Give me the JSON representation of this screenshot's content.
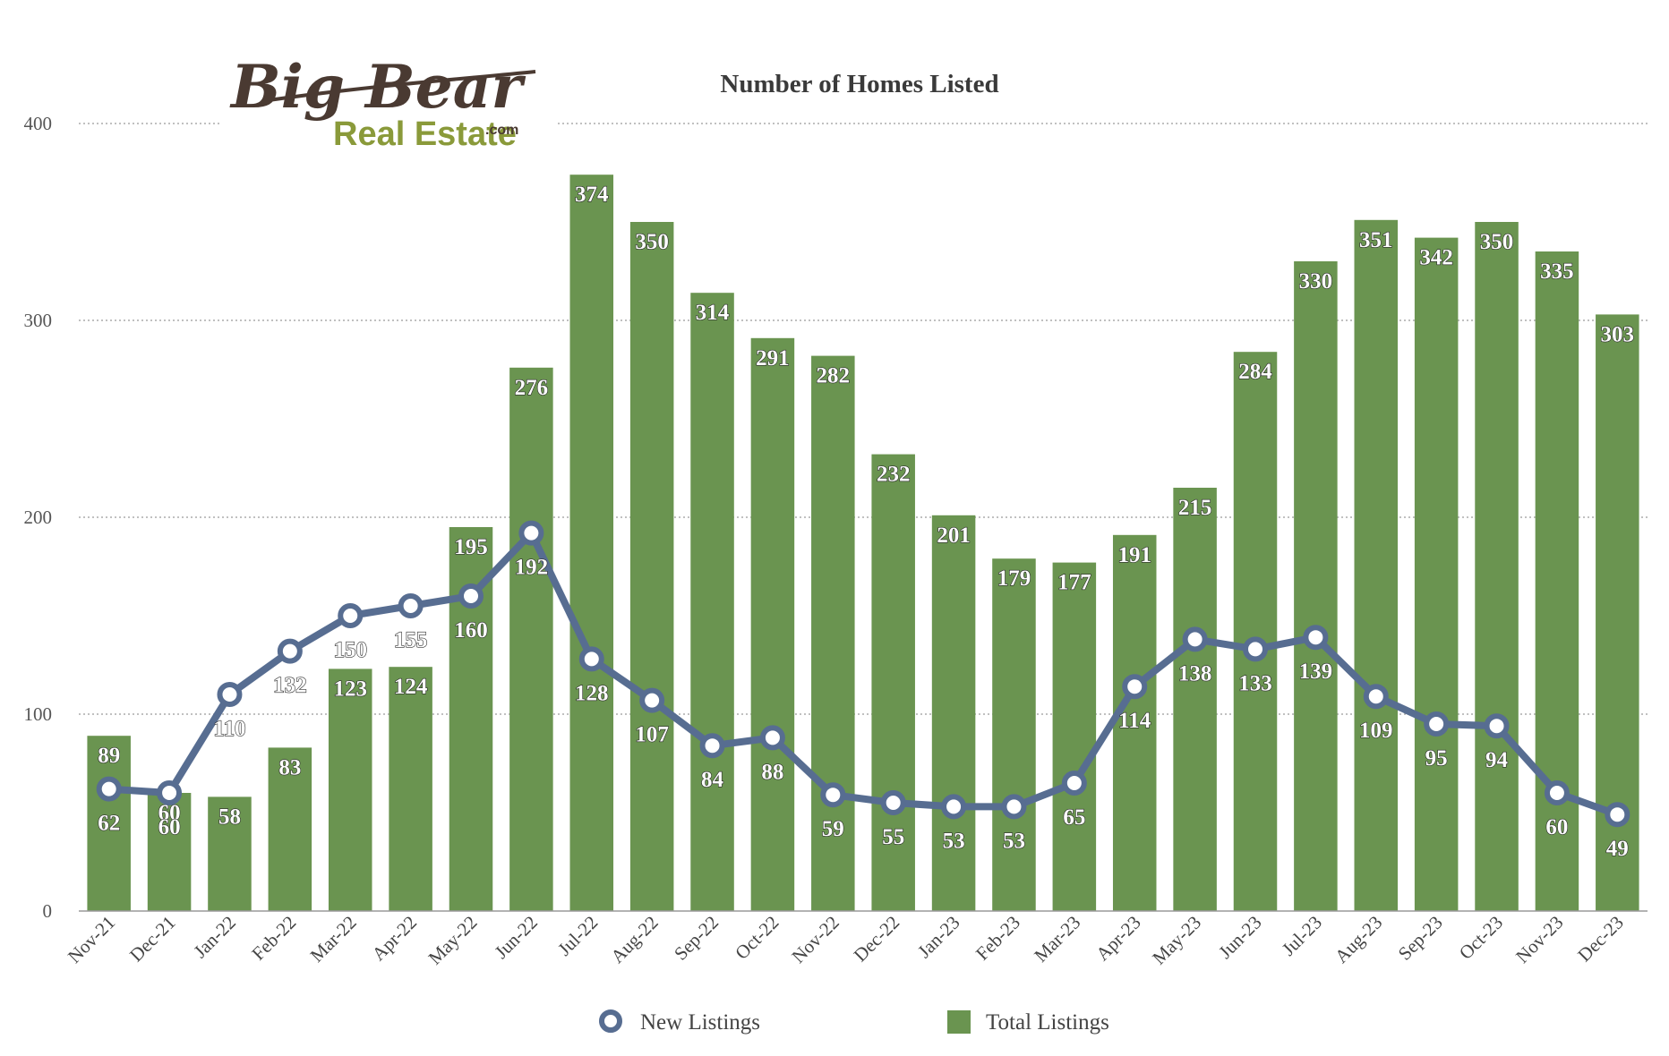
{
  "logo": {
    "line1": "Big Bear",
    "line2": "Real Estate",
    "suffix": ".com"
  },
  "colors": {
    "bar": "#6a9450",
    "line": "#576d91",
    "grid": "#9a9a9a",
    "axis": "#9a9a9a"
  },
  "chart_data": {
    "type": "bar",
    "title": "Number of Homes Listed",
    "xlabel": "",
    "ylabel": "",
    "ylim": [
      0,
      400
    ],
    "yticks": [
      0,
      100,
      200,
      300,
      400
    ],
    "grid": true,
    "legend_position": "bottom",
    "categories": [
      "Nov-21",
      "Dec-21",
      "Jan-22",
      "Feb-22",
      "Mar-22",
      "Apr-22",
      "May-22",
      "Jun-22",
      "Jul-22",
      "Aug-22",
      "Sep-22",
      "Oct-22",
      "Nov-22",
      "Dec-22",
      "Jan-23",
      "Feb-23",
      "Mar-23",
      "Apr-23",
      "May-23",
      "Jun-23",
      "Jul-23",
      "Aug-23",
      "Sep-23",
      "Oct-23",
      "Nov-23",
      "Dec-23"
    ],
    "series": [
      {
        "name": "Total Listings",
        "type": "bar",
        "values": [
          89,
          60,
          58,
          83,
          123,
          124,
          195,
          276,
          374,
          350,
          314,
          291,
          282,
          232,
          201,
          179,
          177,
          191,
          215,
          284,
          330,
          351,
          342,
          350,
          335,
          303
        ]
      },
      {
        "name": "New Listings",
        "type": "line",
        "values": [
          62,
          60,
          110,
          132,
          150,
          155,
          160,
          192,
          128,
          107,
          84,
          88,
          59,
          55,
          53,
          53,
          65,
          114,
          138,
          133,
          139,
          109,
          95,
          94,
          60,
          49
        ]
      }
    ]
  }
}
